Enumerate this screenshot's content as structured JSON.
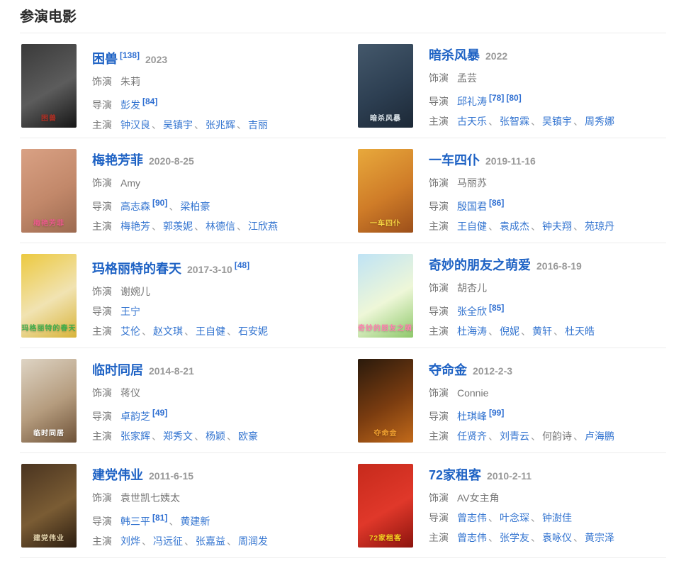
{
  "page_title": "参演电影",
  "labels": {
    "role": "饰演",
    "director": "导演",
    "cast": "主演"
  },
  "colors": {
    "link": "#3374d0",
    "title_link": "#1e62c4",
    "sup": "#2f6fd2",
    "text_gray": "#757575",
    "date_gray": "#999999",
    "divider": "#ececec",
    "heading": "#2b2b2b"
  },
  "movies": [
    {
      "title": "困兽",
      "title_sup": "[138]",
      "date": "2023",
      "date_sup": null,
      "role": "朱莉",
      "directors": [
        {
          "name": "彭发",
          "link": true,
          "sups": [
            "[84]"
          ]
        }
      ],
      "cast": [
        {
          "name": "钟汉良",
          "link": true
        },
        {
          "name": "吴镇宇",
          "link": true
        },
        {
          "name": "张兆辉",
          "link": true
        },
        {
          "name": "吉丽",
          "link": true
        }
      ],
      "poster": {
        "colors": [
          "#3a3a3a",
          "#5c5c5c",
          "#161616"
        ],
        "label_color": "#b03024"
      }
    },
    {
      "title": "暗杀风暴",
      "title_sup": null,
      "date": "2022",
      "date_sup": null,
      "role": "孟芸",
      "directors": [
        {
          "name": "邱礼涛",
          "link": true,
          "sups": [
            "[78]",
            "[80]"
          ]
        }
      ],
      "cast": [
        {
          "name": "古天乐",
          "link": true
        },
        {
          "name": "张智霖",
          "link": true
        },
        {
          "name": "吴镇宇",
          "link": true
        },
        {
          "name": "周秀娜",
          "link": true
        }
      ],
      "poster": {
        "colors": [
          "#44586b",
          "#2d3f52",
          "#1c2836"
        ],
        "label_color": "#dfe8ee"
      }
    },
    {
      "title": "梅艳芳菲",
      "title_sup": null,
      "date": "2020-8-25",
      "date_sup": null,
      "role": "Amy",
      "directors": [
        {
          "name": "高志森",
          "link": true,
          "sups": [
            "[90]"
          ]
        },
        {
          "name": "梁柏豪",
          "link": true,
          "sups": []
        }
      ],
      "cast": [
        {
          "name": "梅艳芳",
          "link": true
        },
        {
          "name": "郭羡妮",
          "link": true
        },
        {
          "name": "林德信",
          "link": true
        },
        {
          "name": "江欣燕",
          "link": true
        }
      ],
      "poster": {
        "colors": [
          "#d9a184",
          "#c2886a",
          "#9c6a50"
        ],
        "label_color": "#e85a8a"
      }
    },
    {
      "title": "一车四仆",
      "title_sup": null,
      "date": "2019-11-16",
      "date_sup": null,
      "role": "马丽苏",
      "directors": [
        {
          "name": "殷国君",
          "link": true,
          "sups": [
            "[86]"
          ]
        }
      ],
      "cast": [
        {
          "name": "王自健",
          "link": true
        },
        {
          "name": "袁成杰",
          "link": true
        },
        {
          "name": "钟夫翔",
          "link": true
        },
        {
          "name": "苑琼丹",
          "link": true
        }
      ],
      "poster": {
        "colors": [
          "#e8a93c",
          "#cf7c28",
          "#9c4f1a"
        ],
        "label_color": "#f5d442"
      }
    },
    {
      "title": "玛格丽特的春天",
      "title_sup": null,
      "date": "2017-3-10",
      "date_sup": "[48]",
      "role": "谢婉儿",
      "directors": [
        {
          "name": "王宁",
          "link": true,
          "sups": []
        }
      ],
      "cast": [
        {
          "name": "艾伦",
          "link": true
        },
        {
          "name": "赵文琪",
          "link": true
        },
        {
          "name": "王自健",
          "link": true
        },
        {
          "name": "石安妮",
          "link": true
        }
      ],
      "poster": {
        "colors": [
          "#ecc93f",
          "#f1e3b2",
          "#d8b43a"
        ],
        "label_color": "#3fae4a"
      }
    },
    {
      "title": "奇妙的朋友之萌爱",
      "title_sup": null,
      "date": "2016-8-19",
      "date_sup": null,
      "role": "胡杏儿",
      "directors": [
        {
          "name": "张全欣",
          "link": true,
          "sups": [
            "[85]"
          ]
        }
      ],
      "cast": [
        {
          "name": "杜海涛",
          "link": true
        },
        {
          "name": "倪妮",
          "link": true
        },
        {
          "name": "黄轩",
          "link": true
        },
        {
          "name": "杜天皓",
          "link": true
        }
      ],
      "poster": {
        "colors": [
          "#bfe3f5",
          "#eef7d8",
          "#8ec86a"
        ],
        "label_color": "#ff7fae"
      }
    },
    {
      "title": "临时同居",
      "title_sup": null,
      "date": "2014-8-21",
      "date_sup": null,
      "role": "蒋仪",
      "directors": [
        {
          "name": "卓韵芝",
          "link": true,
          "sups": [
            "[49]"
          ]
        }
      ],
      "cast": [
        {
          "name": "张家辉",
          "link": true
        },
        {
          "name": "郑秀文",
          "link": true
        },
        {
          "name": "杨颖",
          "link": true
        },
        {
          "name": "欧豪",
          "link": true
        }
      ],
      "poster": {
        "colors": [
          "#ded4c4",
          "#b59c7e",
          "#6e5238"
        ],
        "label_color": "#ffffff"
      }
    },
    {
      "title": "夺命金",
      "title_sup": null,
      "date": "2012-2-3",
      "date_sup": null,
      "role": "Connie",
      "directors": [
        {
          "name": "杜琪峰",
          "link": true,
          "sups": [
            "[99]"
          ]
        }
      ],
      "cast": [
        {
          "name": "任贤齐",
          "link": true
        },
        {
          "name": "刘青云",
          "link": true
        },
        {
          "name": "何韵诗",
          "link": false
        },
        {
          "name": "卢海鹏",
          "link": true
        }
      ],
      "poster": {
        "colors": [
          "#2a1a0c",
          "#7a3c10",
          "#c26a1a"
        ],
        "label_color": "#f0a030"
      }
    },
    {
      "title": "建党伟业",
      "title_sup": null,
      "date": "2011-6-15",
      "date_sup": null,
      "role": "袁世凯七姨太",
      "directors": [
        {
          "name": "韩三平",
          "link": true,
          "sups": [
            "[81]"
          ]
        },
        {
          "name": "黄建新",
          "link": true,
          "sups": []
        }
      ],
      "cast": [
        {
          "name": "刘烨",
          "link": true
        },
        {
          "name": "冯远征",
          "link": true
        },
        {
          "name": "张嘉益",
          "link": true
        },
        {
          "name": "周润发",
          "link": true
        }
      ],
      "poster": {
        "colors": [
          "#4a3420",
          "#7a5c34",
          "#2c1d10"
        ],
        "label_color": "#e8d8b0"
      }
    },
    {
      "title": "72家租客",
      "title_sup": null,
      "date": "2010-2-11",
      "date_sup": null,
      "role": "AV女主角",
      "directors": [
        {
          "name": "曾志伟",
          "link": true,
          "sups": []
        },
        {
          "name": "叶念琛",
          "link": true,
          "sups": []
        },
        {
          "name": "钟澍佳",
          "link": true,
          "sups": []
        }
      ],
      "cast": [
        {
          "name": "曾志伟",
          "link": true
        },
        {
          "name": "张学友",
          "link": true
        },
        {
          "name": "袁咏仪",
          "link": true
        },
        {
          "name": "黄宗泽",
          "link": true
        }
      ],
      "poster": {
        "colors": [
          "#c62a1c",
          "#e0382a",
          "#8c140e"
        ],
        "label_color": "#f5d020"
      }
    }
  ]
}
